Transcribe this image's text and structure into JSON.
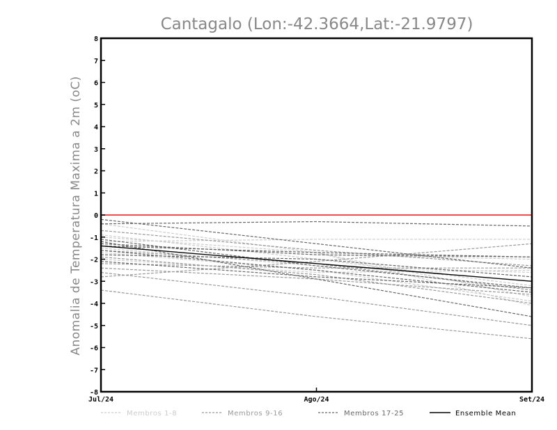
{
  "chart_data": {
    "type": "line",
    "title": "Cantagalo (Lon:-42.3664,Lat:-21.9797)",
    "ylabel": "Anomalia de Temperatura Maxima a 2m (oC)",
    "xlabel": "",
    "categories": [
      "Jul/24",
      "Ago/24",
      "Set/24"
    ],
    "ylim": [
      -8,
      8
    ],
    "yticks": [
      "8",
      "7",
      "6",
      "5",
      "4",
      "3",
      "2",
      "1",
      "0",
      "-1",
      "-2",
      "-3",
      "-4",
      "-5",
      "-6",
      "-7",
      "-8"
    ],
    "ytick_values": [
      8,
      7,
      6,
      5,
      4,
      3,
      2,
      1,
      0,
      -1,
      -2,
      -3,
      -4,
      -5,
      -6,
      -7,
      -8
    ],
    "zero_line_color": "#ee3333",
    "legend": [
      {
        "label": "Membros 1-8",
        "color": "#cccccc",
        "style": "dashed"
      },
      {
        "label": "Membros 9-16",
        "color": "#999999",
        "style": "dashed"
      },
      {
        "label": "Membros 17-25",
        "color": "#666666",
        "style": "dashed"
      },
      {
        "label": "Ensemble Mean",
        "color": "#000000",
        "style": "solid"
      }
    ],
    "series": [
      {
        "name": "Membro 1",
        "group": 0,
        "values": [
          -1.0,
          -1.7,
          -3.7
        ]
      },
      {
        "name": "Membro 2",
        "group": 0,
        "values": [
          -1.2,
          -1.1,
          -1.1
        ]
      },
      {
        "name": "Membro 3",
        "group": 0,
        "values": [
          -0.4,
          -1.7,
          -4.1
        ]
      },
      {
        "name": "Membro 4",
        "group": 0,
        "values": [
          -1.5,
          -2.3,
          -2.6
        ]
      },
      {
        "name": "Membro 5",
        "group": 0,
        "values": [
          -1.7,
          -2.5,
          -3.9
        ]
      },
      {
        "name": "Membro 6",
        "group": 0,
        "values": [
          -2.0,
          -2.6,
          -2.5
        ]
      },
      {
        "name": "Membro 7",
        "group": 0,
        "values": [
          -1.3,
          -1.8,
          -2.0
        ]
      },
      {
        "name": "Membro 8",
        "group": 0,
        "values": [
          -0.9,
          -2.0,
          -3.2
        ]
      },
      {
        "name": "Membro 9",
        "group": 1,
        "values": [
          -3.4,
          -4.6,
          -5.6
        ]
      },
      {
        "name": "Membro 10",
        "group": 1,
        "values": [
          -2.6,
          -3.7,
          -5.0
        ]
      },
      {
        "name": "Membro 11",
        "group": 1,
        "values": [
          -2.8,
          -2.1,
          -1.3
        ]
      },
      {
        "name": "Membro 12",
        "group": 1,
        "values": [
          -2.4,
          -2.9,
          -3.6
        ]
      },
      {
        "name": "Membro 13",
        "group": 1,
        "values": [
          -0.7,
          -1.6,
          -2.3
        ]
      },
      {
        "name": "Membro 14",
        "group": 1,
        "values": [
          -1.9,
          -2.7,
          -4.0
        ]
      },
      {
        "name": "Membro 15",
        "group": 1,
        "values": [
          -1.6,
          -2.2,
          -3.4
        ]
      },
      {
        "name": "Membro 16",
        "group": 1,
        "values": [
          -2.2,
          -2.4,
          -2.4
        ]
      },
      {
        "name": "Membro 17",
        "group": 2,
        "values": [
          -0.4,
          -0.3,
          -0.5
        ]
      },
      {
        "name": "Membro 18",
        "group": 2,
        "values": [
          -1.3,
          -1.8,
          -1.9
        ]
      },
      {
        "name": "Membro 19",
        "group": 2,
        "values": [
          -1.1,
          -2.3,
          -3.3
        ]
      },
      {
        "name": "Membro 20",
        "group": 2,
        "values": [
          -0.2,
          -1.3,
          -2.4
        ]
      },
      {
        "name": "Membro 21",
        "group": 2,
        "values": [
          -1.2,
          -2.9,
          -4.6
        ]
      },
      {
        "name": "Membro 22",
        "group": 2,
        "values": [
          -1.8,
          -2.0,
          -2.8
        ]
      },
      {
        "name": "Membro 23",
        "group": 2,
        "values": [
          -1.4,
          -1.7,
          -1.9
        ]
      },
      {
        "name": "Membro 24",
        "group": 2,
        "values": [
          -2.1,
          -2.8,
          -3.3
        ]
      },
      {
        "name": "Membro 25",
        "group": 2,
        "values": [
          -1.6,
          -2.5,
          -3.5
        ]
      },
      {
        "name": "Ensemble Mean",
        "group": 3,
        "values": [
          -1.4,
          -2.2,
          -3.0
        ]
      }
    ]
  }
}
